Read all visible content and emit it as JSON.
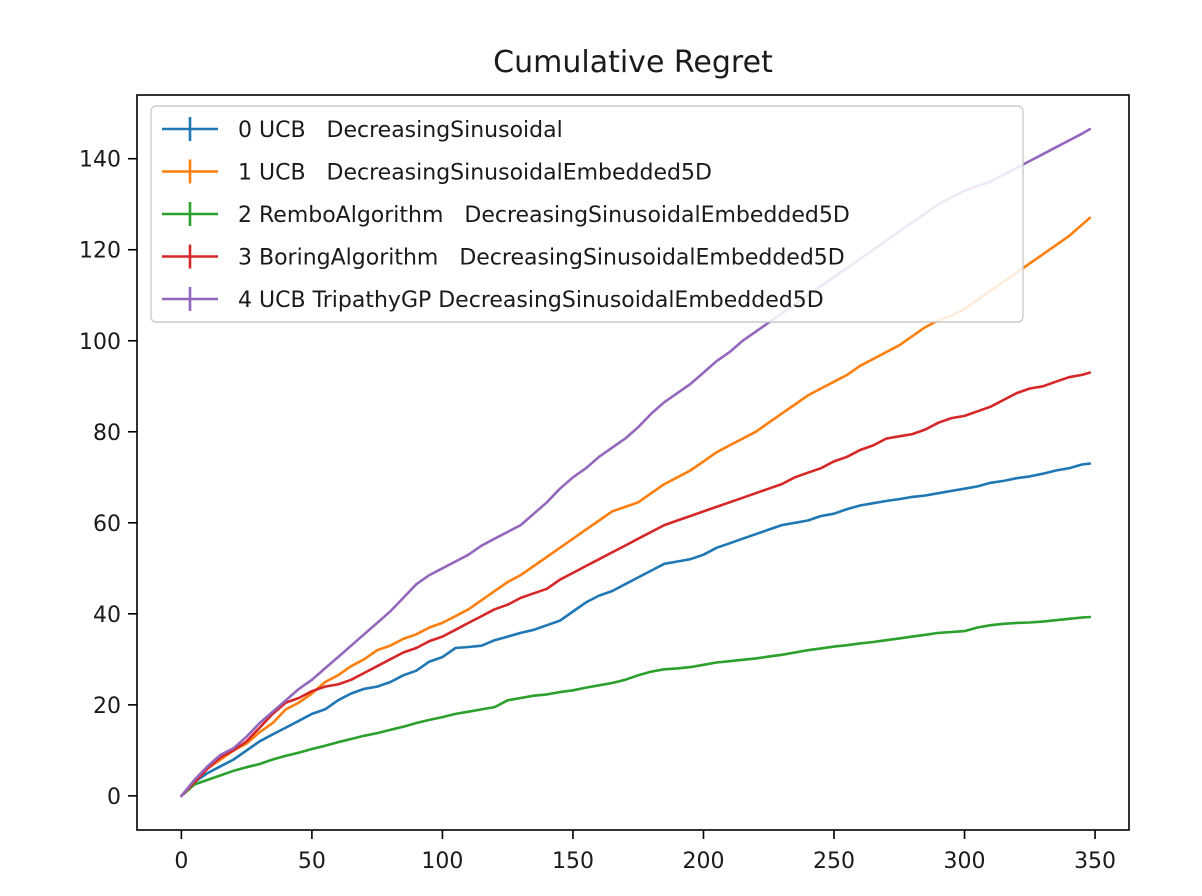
{
  "chart_data": {
    "type": "line",
    "title": "Cumulative Regret",
    "xlabel": "",
    "ylabel": "",
    "xlim": [
      -17,
      363
    ],
    "ylim": [
      -7.5,
      154
    ],
    "x_ticks": [
      0,
      50,
      100,
      150,
      200,
      250,
      300,
      350
    ],
    "y_ticks": [
      0,
      20,
      40,
      60,
      80,
      100,
      120,
      140
    ],
    "grid": false,
    "legend_position": "top-left",
    "series": [
      {
        "name": "0 UCB   DecreasingSinusoidal",
        "color": "#1f77b4",
        "x": [
          0,
          5,
          10,
          15,
          20,
          25,
          30,
          35,
          40,
          45,
          50,
          55,
          60,
          65,
          70,
          75,
          80,
          85,
          90,
          95,
          100,
          105,
          110,
          115,
          120,
          125,
          130,
          135,
          140,
          145,
          150,
          155,
          160,
          165,
          170,
          175,
          180,
          185,
          190,
          195,
          200,
          205,
          210,
          215,
          220,
          225,
          230,
          235,
          240,
          245,
          250,
          255,
          260,
          265,
          270,
          275,
          280,
          285,
          290,
          295,
          300,
          305,
          310,
          315,
          320,
          325,
          330,
          335,
          340,
          345,
          348
        ],
        "y": [
          0,
          3,
          5,
          6.5,
          8,
          10,
          12,
          13.5,
          15,
          16.5,
          18,
          19,
          21,
          22.5,
          23.5,
          24,
          25,
          26.5,
          27.5,
          29.5,
          30.5,
          32.5,
          32.7,
          33,
          34.2,
          35,
          35.8,
          36.5,
          37.5,
          38.5,
          40.5,
          42.5,
          44,
          45,
          46.5,
          48,
          49.5,
          51,
          51.5,
          52,
          53,
          54.5,
          55.5,
          56.5,
          57.5,
          58.5,
          59.5,
          60,
          60.5,
          61.5,
          62,
          63,
          63.8,
          64.3,
          64.8,
          65.2,
          65.7,
          66,
          66.5,
          67,
          67.5,
          68,
          68.8,
          69.2,
          69.8,
          70.2,
          70.8,
          71.5,
          72,
          72.8,
          73
        ]
      },
      {
        "name": "1 UCB   DecreasingSinusoidalEmbedded5D",
        "color": "#ff7f0e",
        "x": [
          0,
          5,
          10,
          15,
          20,
          25,
          30,
          35,
          40,
          45,
          50,
          55,
          60,
          65,
          70,
          75,
          80,
          85,
          90,
          95,
          100,
          105,
          110,
          115,
          120,
          125,
          130,
          135,
          140,
          145,
          150,
          155,
          160,
          165,
          170,
          175,
          180,
          185,
          190,
          195,
          200,
          205,
          210,
          215,
          220,
          225,
          230,
          235,
          240,
          245,
          250,
          255,
          260,
          265,
          270,
          275,
          280,
          285,
          290,
          295,
          300,
          305,
          310,
          315,
          320,
          325,
          330,
          335,
          340,
          345,
          348
        ],
        "y": [
          0,
          3,
          6,
          8,
          10,
          11.5,
          14,
          16,
          19,
          20.5,
          22.5,
          25,
          26.5,
          28.5,
          30,
          32,
          33,
          34.5,
          35.5,
          37,
          38,
          39.5,
          41,
          43,
          45,
          47,
          48.5,
          50.5,
          52.5,
          54.5,
          56.5,
          58.5,
          60.5,
          62.5,
          63.5,
          64.5,
          66.5,
          68.5,
          70,
          71.5,
          73.5,
          75.5,
          77,
          78.5,
          80,
          82,
          84,
          86,
          88,
          89.5,
          91,
          92.5,
          94.5,
          96,
          97.5,
          99,
          101,
          103,
          104.5,
          105.5,
          107,
          109,
          111,
          113,
          115,
          117,
          119,
          121,
          123,
          125.5,
          127
        ]
      },
      {
        "name": "2 RemboAlgorithm   DecreasingSinusoidalEmbedded5D",
        "color": "#2ca02c",
        "x": [
          0,
          5,
          10,
          15,
          20,
          25,
          30,
          35,
          40,
          45,
          50,
          55,
          60,
          65,
          70,
          75,
          80,
          85,
          90,
          95,
          100,
          105,
          110,
          115,
          120,
          125,
          130,
          135,
          140,
          145,
          150,
          155,
          160,
          165,
          170,
          175,
          180,
          185,
          190,
          195,
          200,
          205,
          210,
          215,
          220,
          225,
          230,
          235,
          240,
          245,
          250,
          255,
          260,
          265,
          270,
          275,
          280,
          285,
          290,
          295,
          300,
          305,
          310,
          315,
          320,
          325,
          330,
          335,
          340,
          345,
          348
        ],
        "y": [
          0,
          2.5,
          3.5,
          4.5,
          5.5,
          6.3,
          7,
          8,
          8.8,
          9.5,
          10.3,
          11,
          11.8,
          12.5,
          13.2,
          13.8,
          14.5,
          15.2,
          16,
          16.7,
          17.3,
          18,
          18.5,
          19,
          19.5,
          21,
          21.5,
          22,
          22.3,
          22.8,
          23.2,
          23.8,
          24.3,
          24.8,
          25.5,
          26.5,
          27.3,
          27.8,
          28,
          28.3,
          28.8,
          29.3,
          29.6,
          29.9,
          30.2,
          30.6,
          31,
          31.5,
          32,
          32.4,
          32.8,
          33.1,
          33.5,
          33.8,
          34.2,
          34.6,
          35,
          35.4,
          35.8,
          36,
          36.2,
          37,
          37.5,
          37.8,
          38,
          38.1,
          38.3,
          38.6,
          38.9,
          39.2,
          39.3
        ]
      },
      {
        "name": "3 BoringAlgorithm   DecreasingSinusoidalEmbedded5D",
        "color": "#d62728",
        "x": [
          0,
          5,
          10,
          15,
          20,
          25,
          30,
          35,
          40,
          45,
          50,
          55,
          60,
          65,
          70,
          75,
          80,
          85,
          90,
          95,
          100,
          105,
          110,
          115,
          120,
          125,
          130,
          135,
          140,
          145,
          150,
          155,
          160,
          165,
          170,
          175,
          180,
          185,
          190,
          195,
          200,
          205,
          210,
          215,
          220,
          225,
          230,
          235,
          240,
          245,
          250,
          255,
          260,
          265,
          270,
          275,
          280,
          285,
          290,
          295,
          300,
          305,
          310,
          315,
          320,
          325,
          330,
          335,
          340,
          345,
          348
        ],
        "y": [
          0,
          3,
          6,
          8.5,
          10,
          12,
          15,
          18,
          20.5,
          21.5,
          23,
          24,
          24.5,
          25.5,
          27,
          28.5,
          30,
          31.5,
          32.5,
          34,
          35,
          36.5,
          38,
          39.5,
          41,
          42,
          43.5,
          44.5,
          45.5,
          47.5,
          49,
          50.5,
          52,
          53.5,
          55,
          56.5,
          58,
          59.5,
          60.5,
          61.5,
          62.5,
          63.5,
          64.5,
          65.5,
          66.5,
          67.5,
          68.5,
          70,
          71,
          72,
          73.5,
          74.5,
          76,
          77,
          78.5,
          79,
          79.5,
          80.5,
          82,
          83,
          83.5,
          84.5,
          85.5,
          87,
          88.5,
          89.5,
          90,
          91,
          92,
          92.5,
          93
        ]
      },
      {
        "name": "4 UCB TripathyGP DecreasingSinusoidalEmbedded5D",
        "color": "#9467bd",
        "x": [
          0,
          5,
          10,
          15,
          20,
          25,
          30,
          35,
          40,
          45,
          50,
          55,
          60,
          65,
          70,
          75,
          80,
          85,
          90,
          95,
          100,
          105,
          110,
          115,
          120,
          125,
          130,
          135,
          140,
          145,
          150,
          155,
          160,
          165,
          170,
          175,
          180,
          185,
          190,
          195,
          200,
          205,
          210,
          215,
          220,
          225,
          230,
          235,
          240,
          245,
          250,
          255,
          260,
          265,
          270,
          275,
          280,
          285,
          290,
          295,
          300,
          305,
          310,
          315,
          320,
          325,
          330,
          335,
          340,
          345,
          348
        ],
        "y": [
          0,
          3.5,
          6.5,
          9,
          10.5,
          13,
          16,
          18.5,
          21,
          23.5,
          25.5,
          28,
          30.5,
          33,
          35.5,
          38,
          40.5,
          43.5,
          46.5,
          48.5,
          50,
          51.5,
          53,
          55,
          56.5,
          58,
          59.5,
          62,
          64.5,
          67.5,
          70,
          72,
          74.5,
          76.5,
          78.5,
          81,
          84,
          86.5,
          88.5,
          90.5,
          93,
          95.5,
          97.5,
          100,
          102,
          104,
          106,
          108,
          110,
          112,
          114,
          116,
          118,
          120,
          122,
          124,
          126,
          128,
          130,
          131.5,
          133,
          134,
          135,
          136.5,
          138,
          139.5,
          141,
          142.5,
          144,
          145.5,
          146.5
        ]
      }
    ]
  }
}
